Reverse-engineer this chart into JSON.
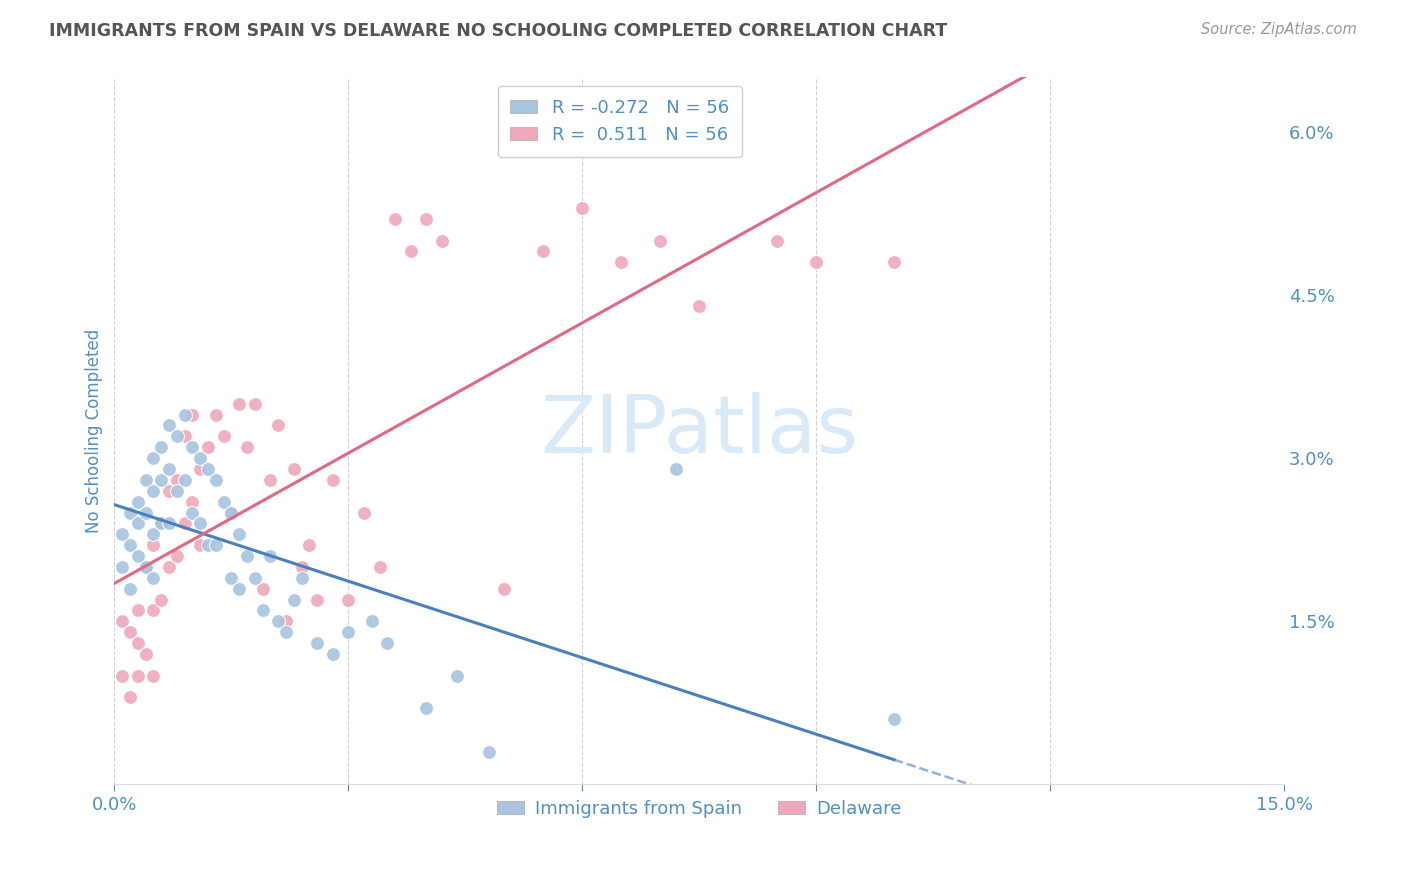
{
  "title": "IMMIGRANTS FROM SPAIN VS DELAWARE NO SCHOOLING COMPLETED CORRELATION CHART",
  "source": "Source: ZipAtlas.com",
  "ylabel": "No Schooling Completed",
  "legend_label_blue": "Immigrants from Spain",
  "legend_label_pink": "Delaware",
  "r_blue": -0.272,
  "r_pink": 0.511,
  "n_blue": 56,
  "n_pink": 56,
  "xlim": [
    0.0,
    0.15
  ],
  "ylim": [
    0.0,
    0.065
  ],
  "xtick_positions": [
    0.0,
    0.03,
    0.06,
    0.09,
    0.12,
    0.15
  ],
  "xticklabels": [
    "0.0%",
    "",
    "",
    "",
    "",
    "15.0%"
  ],
  "yticks_right": [
    0.0,
    0.015,
    0.03,
    0.045,
    0.06
  ],
  "ytick_labels_right": [
    "",
    "1.5%",
    "3.0%",
    "4.5%",
    "6.0%"
  ],
  "grid_color": "#cccccc",
  "background_color": "#ffffff",
  "blue_dot_color": "#a8c4e0",
  "pink_dot_color": "#f0a8b8",
  "blue_line_color": "#4a80c0",
  "pink_line_color": "#e06880",
  "axis_label_color": "#5090c8",
  "title_color": "#555555",
  "watermark_color": "#d8eaf8",
  "blue_scatter_x": [
    0.001,
    0.001,
    0.002,
    0.002,
    0.002,
    0.003,
    0.003,
    0.003,
    0.004,
    0.004,
    0.004,
    0.005,
    0.005,
    0.005,
    0.005,
    0.006,
    0.006,
    0.006,
    0.007,
    0.007,
    0.007,
    0.008,
    0.008,
    0.009,
    0.009,
    0.01,
    0.01,
    0.011,
    0.011,
    0.012,
    0.012,
    0.013,
    0.013,
    0.014,
    0.015,
    0.015,
    0.016,
    0.016,
    0.017,
    0.018,
    0.019,
    0.02,
    0.021,
    0.022,
    0.023,
    0.024,
    0.026,
    0.028,
    0.03,
    0.033,
    0.035,
    0.04,
    0.044,
    0.048,
    0.072,
    0.1
  ],
  "blue_scatter_y": [
    0.023,
    0.02,
    0.025,
    0.022,
    0.018,
    0.026,
    0.024,
    0.021,
    0.028,
    0.025,
    0.02,
    0.03,
    0.027,
    0.023,
    0.019,
    0.031,
    0.028,
    0.024,
    0.033,
    0.029,
    0.024,
    0.032,
    0.027,
    0.034,
    0.028,
    0.031,
    0.025,
    0.03,
    0.024,
    0.029,
    0.022,
    0.028,
    0.022,
    0.026,
    0.025,
    0.019,
    0.023,
    0.018,
    0.021,
    0.019,
    0.016,
    0.021,
    0.015,
    0.014,
    0.017,
    0.019,
    0.013,
    0.012,
    0.014,
    0.015,
    0.013,
    0.007,
    0.01,
    0.003,
    0.029,
    0.006
  ],
  "pink_scatter_x": [
    0.001,
    0.001,
    0.002,
    0.002,
    0.003,
    0.003,
    0.003,
    0.004,
    0.004,
    0.005,
    0.005,
    0.005,
    0.006,
    0.006,
    0.007,
    0.007,
    0.008,
    0.008,
    0.009,
    0.009,
    0.01,
    0.01,
    0.011,
    0.011,
    0.012,
    0.013,
    0.014,
    0.015,
    0.016,
    0.017,
    0.018,
    0.019,
    0.02,
    0.021,
    0.022,
    0.023,
    0.024,
    0.025,
    0.026,
    0.028,
    0.03,
    0.032,
    0.034,
    0.036,
    0.038,
    0.04,
    0.042,
    0.05,
    0.055,
    0.06,
    0.065,
    0.07,
    0.075,
    0.085,
    0.09,
    0.1
  ],
  "pink_scatter_y": [
    0.015,
    0.01,
    0.014,
    0.008,
    0.016,
    0.01,
    0.013,
    0.02,
    0.012,
    0.022,
    0.016,
    0.01,
    0.024,
    0.017,
    0.027,
    0.02,
    0.028,
    0.021,
    0.032,
    0.024,
    0.034,
    0.026,
    0.029,
    0.022,
    0.031,
    0.034,
    0.032,
    0.025,
    0.035,
    0.031,
    0.035,
    0.018,
    0.028,
    0.033,
    0.015,
    0.029,
    0.02,
    0.022,
    0.017,
    0.028,
    0.017,
    0.025,
    0.02,
    0.052,
    0.049,
    0.052,
    0.05,
    0.018,
    0.049,
    0.053,
    0.048,
    0.05,
    0.044,
    0.05,
    0.048,
    0.048
  ]
}
